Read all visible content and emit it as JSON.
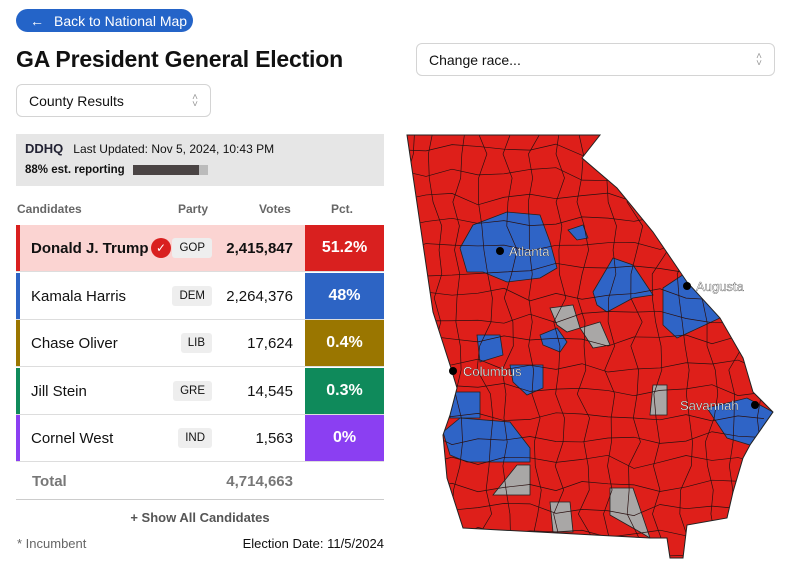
{
  "header": {
    "back_label": "Back to National Map",
    "title": "GA President General Election",
    "view_select": "County Results",
    "race_select": "Change race..."
  },
  "info": {
    "logo": "DDHQ",
    "last_updated": "Last Updated: Nov 5, 2024, 10:43 PM",
    "reporting_label": "88% est. reporting",
    "reporting_pct": 88
  },
  "table": {
    "headers": [
      "Candidates",
      "Party",
      "Votes",
      "Pct."
    ],
    "rows": [
      {
        "name": "Donald J. Trump",
        "party": "GOP",
        "votes": "2,415,847",
        "pct": "51.2%",
        "color": "#d9201f",
        "winner": true
      },
      {
        "name": "Kamala Harris",
        "party": "DEM",
        "votes": "2,264,376",
        "pct": "48%",
        "color": "#2d64c4"
      },
      {
        "name": "Chase Oliver",
        "party": "LIB",
        "votes": "17,624",
        "pct": "0.4%",
        "color": "#9a7600"
      },
      {
        "name": "Jill Stein",
        "party": "GRE",
        "votes": "14,545",
        "pct": "0.3%",
        "color": "#0f8a5b"
      },
      {
        "name": "Cornel West",
        "party": "IND",
        "votes": "1,563",
        "pct": "0%",
        "color": "#8b3ff2"
      }
    ],
    "total_label": "Total",
    "total_votes": "4,714,663",
    "show_all": "+ Show All Candidates"
  },
  "footer": {
    "incumbent": "* Incumbent",
    "election_date": "Election Date: 11/5/2024"
  },
  "map": {
    "cities": [
      "Atlanta",
      "Augusta",
      "Columbus",
      "Savannah"
    ],
    "colors": {
      "rep": "#de1f1a",
      "dem": "#2f64c6",
      "none": "#a9a7a6"
    }
  }
}
